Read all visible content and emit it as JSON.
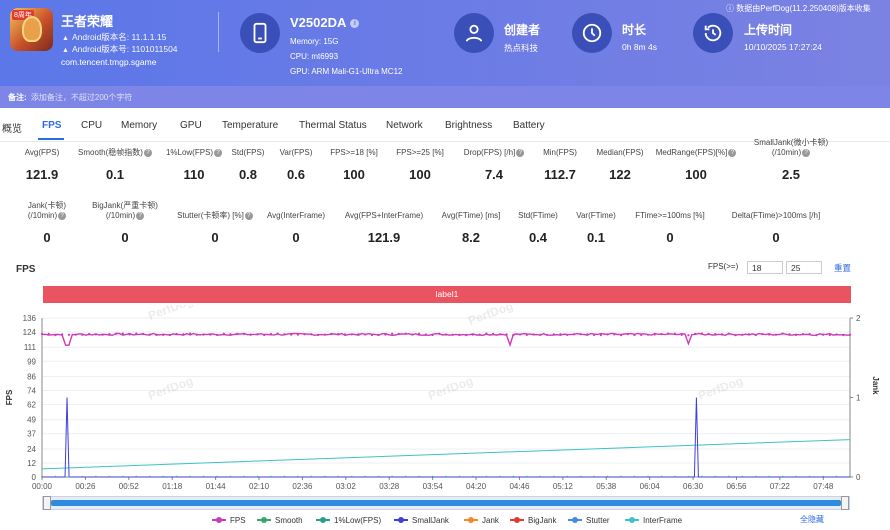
{
  "header": {
    "app_name": "王者荣耀",
    "android_version_name": "Android版本名: 11.1.1.15",
    "android_version_code": "Android版本号: 1101011504",
    "package": "com.tencent.tmgp.sgame",
    "app_badge": "8周年",
    "device_name": "V2502DA",
    "memory": "Memory: 15G",
    "cpu": "CPU: mt6993",
    "gpu": "GPU: ARM Mali-G1-Ultra MC12",
    "creator_title": "创建者",
    "creator_value": "热点科技",
    "duration_title": "时长",
    "duration_value": "0h 8m 4s",
    "upload_title": "上传时间",
    "upload_value": "10/10/2025 17:27:24",
    "perfdog_version": "数据由PerfDog(11.2.250408)版本收集"
  },
  "note": {
    "label": "备注:",
    "placeholder": "添加备注，不超过200个字符"
  },
  "tabs": [
    "概览",
    "FPS",
    "CPU",
    "Memory",
    "GPU",
    "Temperature",
    "Thermal Status",
    "Network",
    "Brightness",
    "Battery"
  ],
  "stats_row1": [
    {
      "label": "Avg(FPS)",
      "value": "121.9"
    },
    {
      "label": "Smooth(稳帧指数)",
      "value": "0.1"
    },
    {
      "label": "1%Low(FPS)",
      "value": "110"
    },
    {
      "label": "Std(FPS)",
      "value": "0.8"
    },
    {
      "label": "Var(FPS)",
      "value": "0.6"
    },
    {
      "label": "FPS>=18 [%]",
      "value": "100"
    },
    {
      "label": "FPS>=25 [%]",
      "value": "100"
    },
    {
      "label": "Drop(FPS) [/h]",
      "value": "7.4"
    },
    {
      "label": "Min(FPS)",
      "value": "112.7"
    },
    {
      "label": "Median(FPS)",
      "value": "122"
    },
    {
      "label": "MedRange(FPS)[%]",
      "value": "100"
    },
    {
      "label": "SmallJank(微小卡顿)",
      "label2": "(/10min)",
      "value": "2.5"
    }
  ],
  "stats_row2": [
    {
      "label": "Jank(卡顿)",
      "label2": "(/10min)",
      "value": "0"
    },
    {
      "label": "BigJank(严重卡顿)",
      "label2": "(/10min)",
      "value": "0"
    },
    {
      "label": "Stutter(卡顿率) [%]",
      "value": "0"
    },
    {
      "label": "Avg(InterFrame)",
      "value": "0"
    },
    {
      "label": "Avg(FPS+InterFrame)",
      "value": "121.9"
    },
    {
      "label": "Avg(FTime) [ms]",
      "value": "8.2"
    },
    {
      "label": "Std(FTime)",
      "value": "0.4"
    },
    {
      "label": "Var(FTime)",
      "value": "0.1"
    },
    {
      "label": "FTime>=100ms [%]",
      "value": "0"
    },
    {
      "label": "Delta(FTime)>100ms [/h]",
      "value": "0"
    }
  ],
  "fps_panel": {
    "title": "FPS",
    "threshold_label": "FPS(>=)",
    "threshold_1": "18",
    "threshold_2": "25",
    "reset_label": "重置",
    "label_bar": "label1",
    "watermark": "PerfDog",
    "hide_all": "全隐藏"
  },
  "chart_data": {
    "type": "line",
    "ylabel": "FPS",
    "y2label": "Jank",
    "y_ticks": [
      0,
      12,
      24,
      37,
      49,
      62,
      74,
      86,
      99,
      111,
      124,
      136
    ],
    "ylim": [
      0,
      136
    ],
    "y2_ticks": [
      0,
      1,
      2
    ],
    "y2lim": [
      0,
      2
    ],
    "x_ticks": [
      "00:00",
      "00:26",
      "00:52",
      "01:18",
      "01:44",
      "02:10",
      "02:36",
      "03:02",
      "03:28",
      "03:54",
      "04:20",
      "04:46",
      "05:12",
      "05:38",
      "06:04",
      "06:30",
      "06:56",
      "07:22",
      "07:48"
    ],
    "duration_s": 484,
    "series": [
      {
        "name": "FPS",
        "color": "#cc3ab8",
        "axis": "left",
        "base": 122,
        "min_points": [
          [
            15,
            112.7
          ],
          [
            280,
            113
          ],
          [
            388,
            114
          ]
        ]
      },
      {
        "name": "Smooth",
        "color": "#3aa66a",
        "axis": "left"
      },
      {
        "name": "1%Low(FPS)",
        "color": "#25a08a",
        "axis": "left"
      },
      {
        "name": "SmallJank",
        "color": "#3f3fd8",
        "axis": "right",
        "spikes_s": [
          15,
          392
        ],
        "spike_value": 1
      },
      {
        "name": "Jank",
        "color": "#f08a2c",
        "axis": "right"
      },
      {
        "name": "BigJank",
        "color": "#e23b2e",
        "axis": "right"
      },
      {
        "name": "Stutter",
        "color": "#4a8ae0",
        "axis": "right"
      },
      {
        "name": "InterFrame",
        "color": "#3cc3c3",
        "axis": "left",
        "start": 7,
        "end": 32
      }
    ]
  }
}
